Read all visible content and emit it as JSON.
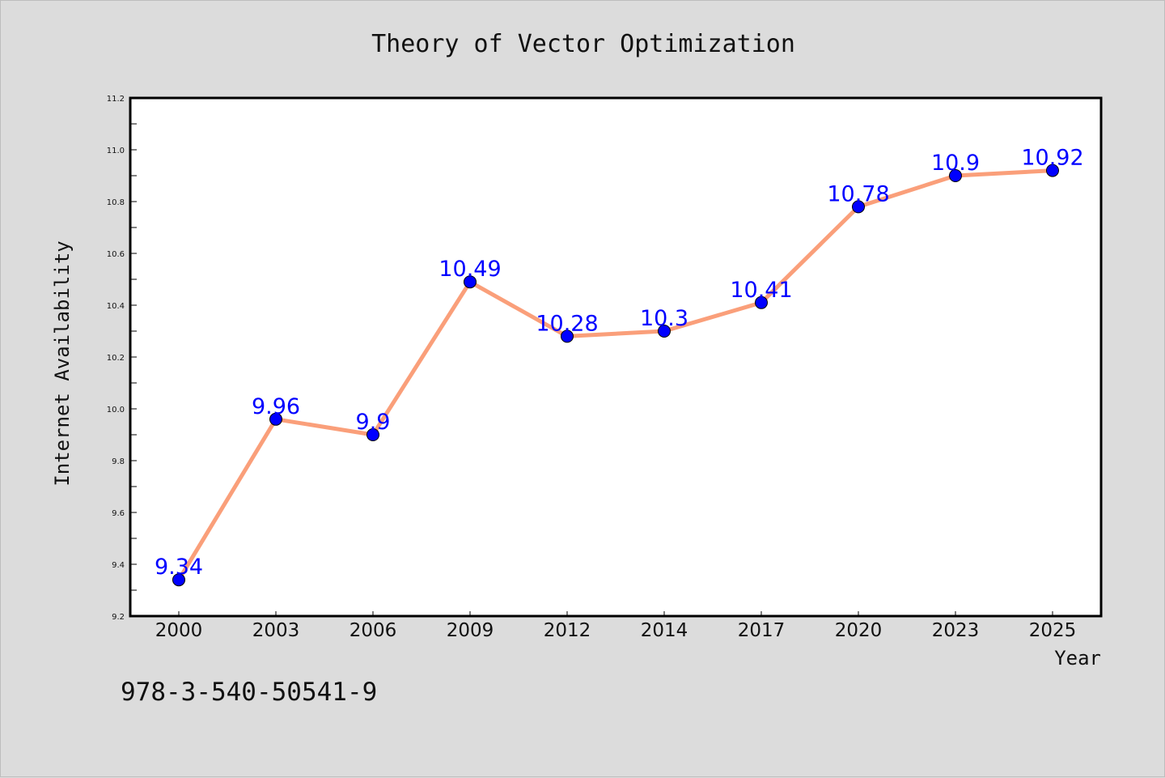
{
  "chart_data": {
    "type": "line",
    "title": "Theory of Vector Optimization",
    "xlabel": "Year",
    "ylabel": "Internet Availability",
    "categories": [
      "2000",
      "2003",
      "2006",
      "2009",
      "2012",
      "2014",
      "2017",
      "2020",
      "2023",
      "2025"
    ],
    "series": [
      {
        "values": [
          9.34,
          9.96,
          9.9,
          10.49,
          10.28,
          10.3,
          10.41,
          10.78,
          10.9,
          10.92
        ]
      }
    ],
    "data_labels": [
      "9.34",
      "9.96",
      "9.9",
      "10.49",
      "10.28",
      "10.3",
      "10.41",
      "10.78",
      "10.9",
      "10.92"
    ],
    "ylim": [
      9.2,
      11.2
    ],
    "yticks": [
      "9.2",
      "9.4",
      "9.6",
      "9.8",
      "10.0",
      "10.2",
      "10.4",
      "10.6",
      "10.8",
      "11.0",
      "11.2"
    ],
    "grid": false,
    "legend": false,
    "colors": {
      "line": "#fa9f7a",
      "marker": "#0000ff",
      "label": "#0000ff",
      "background": "#dcdcdc",
      "plot": "#ffffff"
    }
  },
  "footer": {
    "isbn": "978-3-540-50541-9"
  }
}
